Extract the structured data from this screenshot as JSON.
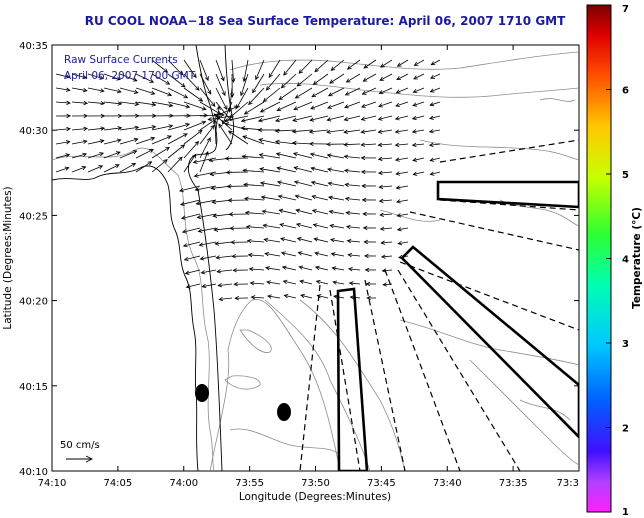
{
  "title": "RU COOL  NOAA−18  Sea Surface Temperature:  April 06, 2007 1710 GMT",
  "inset": {
    "line1": "Raw Surface Currents",
    "line2": "April 06, 2007 1700 GMT",
    "color": "#1a1aa0"
  },
  "axes": {
    "xlabel": "Longitude (Degrees:Minutes)",
    "ylabel": "Latitude (Degrees:Minutes)",
    "x_ticks": [
      "74:10",
      "74:05",
      "74:00",
      "73:55",
      "73:50",
      "73:45",
      "73:40",
      "73:35",
      "73:3"
    ],
    "y_ticks": [
      "40:35",
      "40:30",
      "40:25",
      "40:20",
      "40:15",
      "40:10"
    ]
  },
  "scale_label": "50 cm/s",
  "colorbar": {
    "label": "Temperature (°C)",
    "ticks": [
      "1",
      "2",
      "3",
      "4",
      "5",
      "6",
      "7"
    ],
    "min": 1,
    "max": 7
  },
  "colors": {
    "title": "#1a1aa0",
    "lines": "#000000",
    "contours": "#8c8c8c"
  }
}
